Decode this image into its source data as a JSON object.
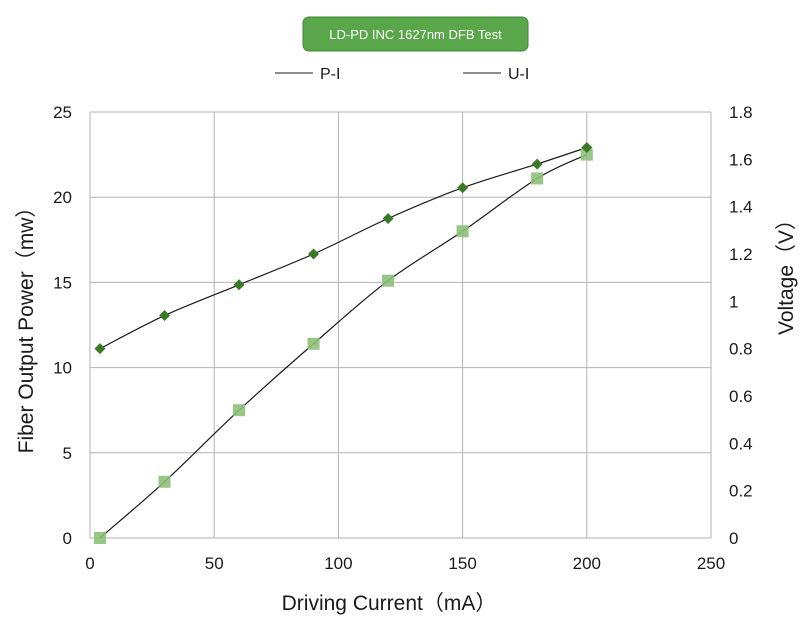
{
  "chart_data": {
    "type": "scatter",
    "title": "LD-PD INC 1627nm DFB Test",
    "xlabel": "Driving Current（mA）",
    "ylabel": "Fiber Output Power（mw）",
    "y2label": "Voltage（V）",
    "xlim": [
      0,
      250
    ],
    "ylim": [
      0,
      25
    ],
    "y2lim": [
      0,
      1.8
    ],
    "x_ticks": [
      "0",
      "50",
      "100",
      "150",
      "200",
      "250"
    ],
    "y_ticks": [
      "0",
      "5",
      "10",
      "15",
      "20",
      "25"
    ],
    "y2_ticks": [
      "0",
      "0.2",
      "0.4",
      "0.6",
      "0.8",
      "1",
      "1.2",
      "1.4",
      "1.6",
      "1.8"
    ],
    "grid": true,
    "legend_position": "top",
    "series": [
      {
        "name": "P-I",
        "axis": "left",
        "marker": "square",
        "color": "#8cc07a",
        "x": [
          4,
          30,
          60,
          90,
          120,
          150,
          180,
          200
        ],
        "y": [
          0.0,
          3.3,
          7.5,
          11.4,
          15.1,
          18.0,
          21.1,
          22.5
        ]
      },
      {
        "name": "U-I",
        "axis": "right",
        "marker": "diamond",
        "color": "#3a7a26",
        "x": [
          4,
          30,
          60,
          90,
          120,
          150,
          180,
          200
        ],
        "y": [
          0.8,
          0.94,
          1.07,
          1.2,
          1.35,
          1.48,
          1.58,
          1.65
        ]
      }
    ]
  },
  "colors": {
    "title_box": "#5aa64a",
    "title_border": "#3f8a34",
    "grid": "#b3b3b3",
    "line": "#1a1a1a"
  }
}
